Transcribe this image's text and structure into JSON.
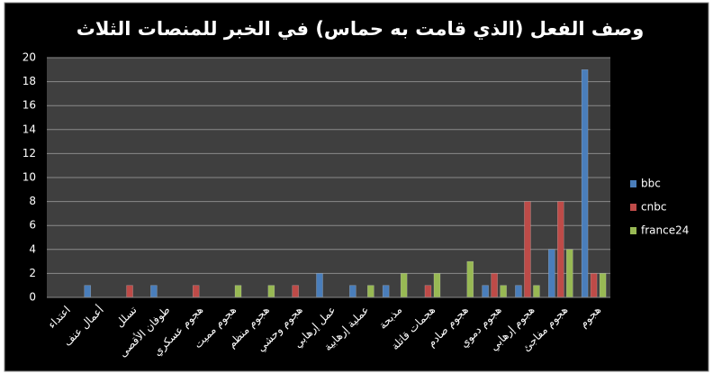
{
  "chart_data": {
    "type": "bar",
    "title": "وصف الفعل (الذي قامت به حماس) في الخبر للمنصات الثلاث",
    "categories": [
      "اعتداء",
      "أعمال عنف",
      "تسلل",
      "طوفان الأقصى",
      "هجوم عسكري",
      "هجوم مميت",
      "هجوم منظم",
      "هجوم وحشي",
      "عمل إرهابي",
      "عملية إرهابية",
      "مذبحة",
      "هجمات قاتلة",
      "هجوم صادم",
      "هجوم دموي",
      "هجوم إرهابي",
      "هجوم مفاجئ",
      "هجوم"
    ],
    "series": [
      {
        "name": "bbc",
        "color": "#4a7ebb",
        "values": [
          0,
          1,
          0,
          1,
          0,
          0,
          0,
          0,
          2,
          1,
          1,
          0,
          0,
          1,
          1,
          4,
          19
        ]
      },
      {
        "name": "cnbc",
        "color": "#be4b48",
        "values": [
          0,
          0,
          1,
          0,
          1,
          0,
          0,
          1,
          0,
          0,
          0,
          1,
          0,
          2,
          8,
          8,
          2
        ]
      },
      {
        "name": "france24",
        "color": "#98b954",
        "values": [
          0,
          0,
          0,
          0,
          0,
          1,
          1,
          0,
          0,
          1,
          2,
          2,
          3,
          1,
          1,
          4,
          2
        ]
      }
    ],
    "ylim": [
      0,
      20
    ],
    "yticks": [
      0,
      2,
      4,
      6,
      8,
      10,
      12,
      14,
      16,
      18,
      20
    ],
    "grid": true,
    "legend": "right"
  }
}
